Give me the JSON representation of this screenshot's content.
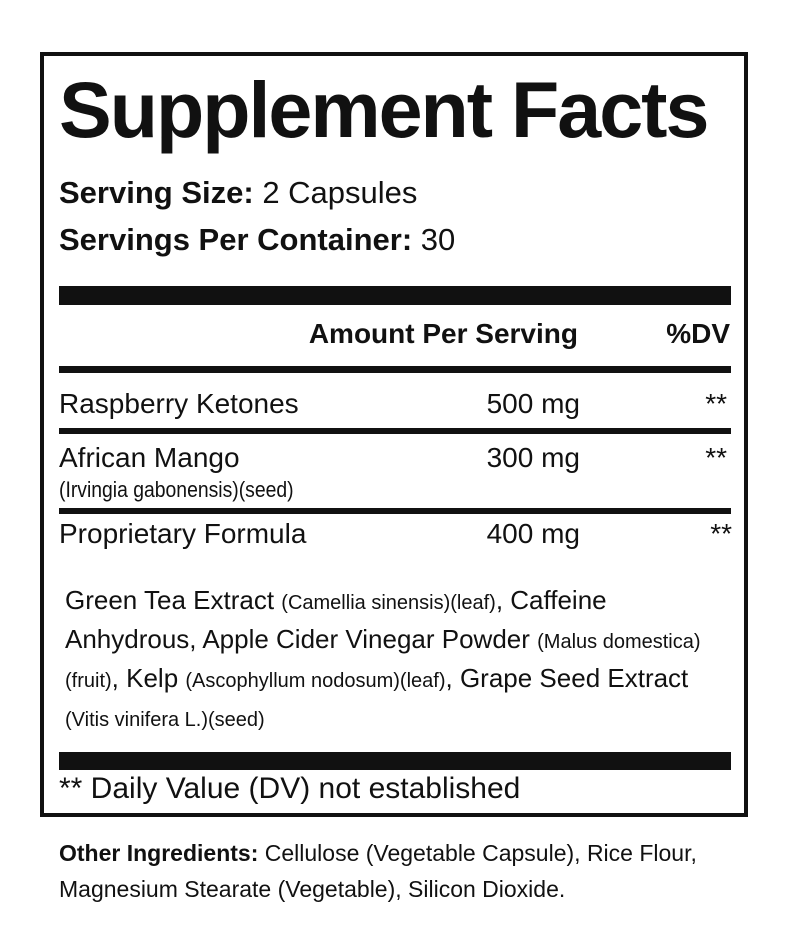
{
  "title": "Supplement Facts",
  "serving_size": {
    "label": "Serving Size:",
    "value": "2 Capsules"
  },
  "servings_per_container": {
    "label": "Servings Per Container:",
    "value": "30"
  },
  "header": {
    "amount": "Amount Per Serving",
    "dv": "%DV"
  },
  "rows": [
    {
      "name": "Raspberry Ketones",
      "sub": "",
      "amount": "500 mg",
      "dv": "**"
    },
    {
      "name": "African Mango",
      "sub": "(Irvingia gabonensis)(seed)",
      "amount": "300 mg",
      "dv": "**"
    },
    {
      "name": "Proprietary Formula",
      "sub": "",
      "amount": "400 mg",
      "dv": "**"
    }
  ],
  "blend": [
    {
      "t": "Green Tea Extract ",
      "s": "(Camellia sinensis)(leaf)"
    },
    {
      "t": ", Caffeine Anhydrous, Apple Cider Vinegar Powder ",
      "s": "(Malus domestica)(fruit)"
    },
    {
      "t": ", Kelp ",
      "s": "(Ascophyllum nodosum)(leaf)"
    },
    {
      "t": ", Grape Seed Extract ",
      "s": "(Vitis vinifera L.)(seed)"
    }
  ],
  "footnote": "** Daily Value (DV) not established",
  "other_ingredients": {
    "label": "Other Ingredients:",
    "value": " Cellulose (Vegetable Capsule), Rice Flour, Magnesium Stearate (Vegetable), Silicon Dioxide."
  }
}
